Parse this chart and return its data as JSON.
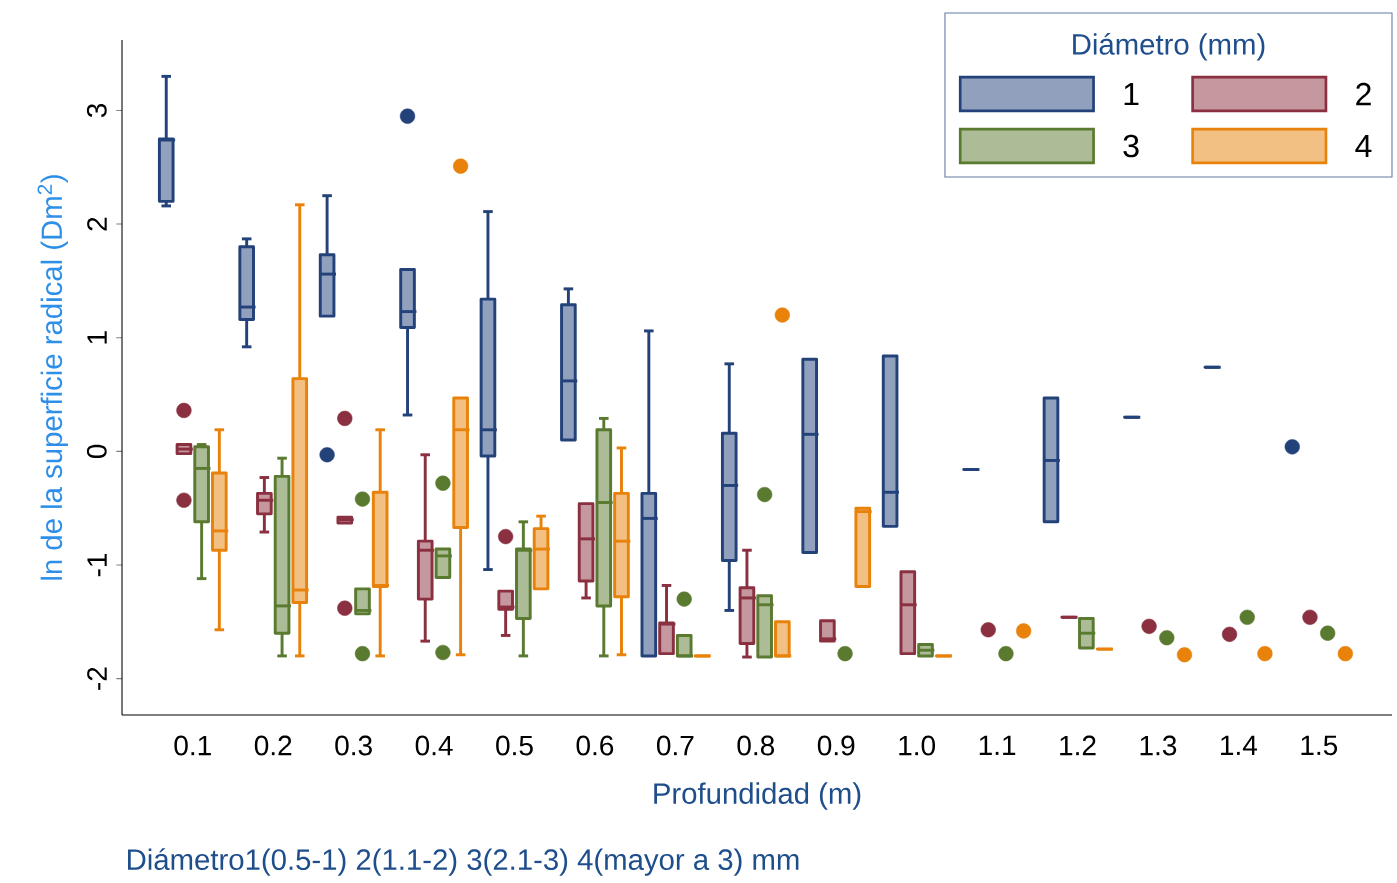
{
  "chart_data": {
    "type": "box",
    "ylabel": "ln de la superficie radical (Dm$^{2}$)",
    "xlabel": "Profundidad (m)",
    "legend_title": "Diámetro (mm)",
    "legend": "top right",
    "annotations": [
      "Diámetro1(0.5-1) 2(1.1-2) 3(2.1-3) 4(mayor a 3) mm"
    ],
    "categories": [
      "0.1",
      "0.2",
      "0.3",
      "0.4",
      "0.5",
      "0.6",
      "0.7",
      "0.8",
      "0.9",
      "1.0",
      "1.1",
      "1.2",
      "1.3",
      "1.4",
      "1.5"
    ],
    "ylim": [
      -2.32,
      3.62
    ],
    "yticks": [
      -2,
      -1,
      0,
      1,
      2,
      3
    ],
    "series": [
      {
        "name": "1",
        "color": "#24427a",
        "boxes": [
          {
            "low": 2.16,
            "q1": 2.2,
            "median": 2.74,
            "q3": 2.75,
            "high": 3.3
          },
          {
            "low": 0.92,
            "q1": 1.16,
            "median": 1.27,
            "q3": 1.8,
            "high": 1.87
          },
          {
            "low": 1.19,
            "q1": 1.19,
            "median": 1.56,
            "q3": 1.73,
            "high": 2.25,
            "outliers": [
              -0.03
            ]
          },
          {
            "low": 0.32,
            "q1": 1.09,
            "median": 1.23,
            "q3": 1.6,
            "high": 1.6,
            "outliers": [
              2.95
            ]
          },
          {
            "low": -1.04,
            "q1": -0.04,
            "median": 0.19,
            "q3": 1.34,
            "high": 2.11
          },
          {
            "low": 0.1,
            "q1": 0.1,
            "median": 0.62,
            "q3": 1.29,
            "high": 1.43
          },
          {
            "low": -1.8,
            "q1": -1.8,
            "median": -0.59,
            "q3": -0.37,
            "high": 1.06
          },
          {
            "low": -1.4,
            "q1": -0.96,
            "median": -0.3,
            "q3": 0.16,
            "high": 0.77
          },
          {
            "low": -0.89,
            "q1": -0.89,
            "median": 0.15,
            "q3": 0.81,
            "high": 0.81
          },
          {
            "low": -0.66,
            "q1": -0.66,
            "median": -0.36,
            "q3": 0.84,
            "high": 0.84
          },
          {
            "low": -0.16,
            "q1": -0.16,
            "median": -0.16,
            "q3": -0.16,
            "high": -0.16
          },
          {
            "low": -0.62,
            "q1": -0.62,
            "median": -0.08,
            "q3": 0.47,
            "high": 0.47
          },
          {
            "low": 0.3,
            "q1": 0.3,
            "median": 0.3,
            "q3": 0.3,
            "high": 0.3
          },
          {
            "low": 0.74,
            "q1": 0.74,
            "median": 0.74,
            "q3": 0.74,
            "high": 0.74
          },
          null
        ]
      },
      {
        "name": "2",
        "color": "#8b3040",
        "boxes": [
          {
            "low": -0.02,
            "q1": -0.02,
            "median": 0.02,
            "q3": 0.06,
            "high": 0.06,
            "outliers": [
              0.36,
              -0.43
            ]
          },
          {
            "low": -0.71,
            "q1": -0.55,
            "median": -0.43,
            "q3": -0.37,
            "high": -0.23
          },
          {
            "low": -0.63,
            "q1": -0.63,
            "median": -0.6,
            "q3": -0.58,
            "high": -0.58,
            "outliers": [
              0.29,
              -1.38
            ]
          },
          {
            "low": -1.67,
            "q1": -1.3,
            "median": -0.87,
            "q3": -0.79,
            "high": -0.03
          },
          {
            "low": -1.62,
            "q1": -1.39,
            "median": -1.37,
            "q3": -1.23,
            "high": -1.23,
            "outliers": [
              -0.75
            ]
          },
          {
            "low": -1.29,
            "q1": -1.14,
            "median": -0.77,
            "q3": -0.46,
            "high": -0.46
          },
          {
            "low": -1.78,
            "q1": -1.78,
            "median": -1.52,
            "q3": -1.51,
            "high": -1.18
          },
          {
            "low": -1.81,
            "q1": -1.69,
            "median": -1.29,
            "q3": -1.2,
            "high": -0.87
          },
          {
            "low": -1.67,
            "q1": -1.67,
            "median": -1.65,
            "q3": -1.49,
            "high": -1.49
          },
          {
            "low": -1.78,
            "q1": -1.78,
            "median": -1.35,
            "q3": -1.06,
            "high": -1.06
          },
          null,
          {
            "low": -1.46,
            "q1": -1.46,
            "median": -1.46,
            "q3": -1.46,
            "high": -1.46
          },
          null,
          null,
          null
        ]
      },
      {
        "name": "3",
        "color": "#5a7a30",
        "boxes": [
          {
            "low": -1.12,
            "q1": -0.62,
            "median": -0.15,
            "q3": 0.04,
            "high": 0.06
          },
          {
            "low": -1.8,
            "q1": -1.6,
            "median": -1.36,
            "q3": -0.22,
            "high": -0.06
          },
          {
            "low": -1.43,
            "q1": -1.43,
            "median": -1.4,
            "q3": -1.21,
            "high": -1.21,
            "outliers": [
              -0.42,
              -1.78
            ]
          },
          {
            "low": -1.11,
            "q1": -1.11,
            "median": -0.92,
            "q3": -0.86,
            "high": -0.86,
            "outliers": [
              -0.28,
              -1.77
            ]
          },
          {
            "low": -1.8,
            "q1": -1.47,
            "median": -0.87,
            "q3": -0.86,
            "high": -0.62
          },
          {
            "low": -1.8,
            "q1": -1.36,
            "median": -0.45,
            "q3": 0.19,
            "high": 0.29
          },
          {
            "low": -1.8,
            "q1": -1.8,
            "median": -1.8,
            "q3": -1.62,
            "high": -1.62,
            "outliers": [
              -1.3
            ]
          },
          {
            "low": -1.81,
            "q1": -1.81,
            "median": -1.35,
            "q3": -1.27,
            "high": -1.27,
            "outliers": [
              -0.38
            ]
          },
          null,
          {
            "low": -1.8,
            "q1": -1.8,
            "median": -1.75,
            "q3": -1.7,
            "high": -1.7
          },
          null,
          {
            "low": -1.73,
            "q1": -1.73,
            "median": -1.6,
            "q3": -1.47,
            "high": -1.47
          },
          null,
          null,
          null
        ]
      },
      {
        "name": "4",
        "color": "#e8820a",
        "boxes": [
          {
            "low": -1.57,
            "q1": -0.87,
            "median": -0.7,
            "q3": -0.19,
            "high": 0.19
          },
          {
            "low": -1.8,
            "q1": -1.33,
            "median": -1.22,
            "q3": 0.64,
            "high": 2.17
          },
          {
            "low": -1.8,
            "q1": -1.19,
            "median": -1.18,
            "q3": -0.36,
            "high": 0.19
          },
          {
            "low": -1.79,
            "q1": -0.67,
            "median": 0.19,
            "q3": 0.47,
            "high": 0.47,
            "outliers": [
              2.51
            ]
          },
          {
            "low": -1.21,
            "q1": -1.21,
            "median": -0.86,
            "q3": -0.68,
            "high": -0.57
          },
          {
            "low": -1.79,
            "q1": -1.28,
            "median": -0.79,
            "q3": -0.37,
            "high": 0.03
          },
          {
            "low": -1.8,
            "q1": -1.8,
            "median": -1.8,
            "q3": -1.8,
            "high": -1.8
          },
          {
            "low": -1.8,
            "q1": -1.8,
            "median": -1.8,
            "q3": -1.5,
            "high": -1.5,
            "outliers": [
              1.2
            ]
          },
          {
            "low": -1.19,
            "q1": -1.19,
            "median": -0.53,
            "q3": -0.5,
            "high": -0.5
          },
          {
            "low": -1.8,
            "q1": -1.8,
            "median": -1.8,
            "q3": -1.8,
            "high": -1.8
          },
          null,
          {
            "low": -1.74,
            "q1": -1.74,
            "median": -1.74,
            "q3": -1.74,
            "high": -1.74
          },
          null,
          null,
          null
        ]
      },
      {
        "type": "scatter",
        "color": "#24427a",
        "x": [
          "1.5"
        ],
        "values": [
          0.04
        ]
      },
      {
        "type": "scatter",
        "color": "#8b3040",
        "x": [
          "1.1",
          "1.3",
          "1.4",
          "1.5"
        ],
        "values": [
          -1.57,
          -1.54,
          -1.61,
          -1.46
        ]
      },
      {
        "type": "scatter",
        "color": "#5a7a30",
        "x": [
          "0.9",
          "1.1",
          "1.3",
          "1.4",
          "1.5"
        ],
        "values": [
          -1.78,
          -1.78,
          -1.64,
          -1.46,
          -1.6
        ]
      },
      {
        "type": "scatter",
        "color": "#e8820a",
        "x": [
          "1.1",
          "1.3",
          "1.4",
          "1.5"
        ],
        "values": [
          -1.58,
          -1.79,
          -1.78,
          -1.78
        ]
      }
    ]
  }
}
